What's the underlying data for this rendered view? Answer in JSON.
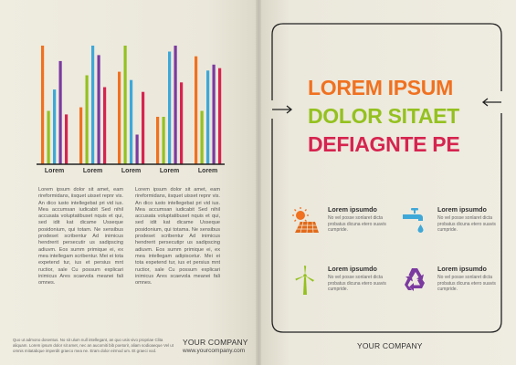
{
  "chart_data": {
    "type": "bar",
    "categories": [
      "Lorem",
      "Lorem",
      "Lorem",
      "Lorem",
      "Lorem"
    ],
    "series": [
      {
        "values": [
          100,
          48,
          78,
          40,
          91
        ],
        "color": "#f07120"
      },
      {
        "values": [
          45,
          75,
          100,
          40,
          45
        ],
        "color": "#94c11f"
      },
      {
        "values": [
          63,
          100,
          71,
          95,
          79
        ],
        "color": "#3ea8d8"
      },
      {
        "values": [
          87,
          92,
          25,
          100,
          84
        ],
        "color": "#7b3aa0"
      },
      {
        "values": [
          42,
          65,
          61,
          69,
          81
        ],
        "color": "#d6244f"
      }
    ],
    "ylim": [
      0,
      100
    ],
    "grid": false,
    "legend": "none"
  },
  "left_page": {
    "column1": "Lorem ipsum dolor sit amet, eam rireformidans, iisquet uisset repnr vis. An dico iusto intellegebat pri vid ius. Mea accumsan iudicabit Sed nihil accusata voluptatibuset nquis et qui, sed idit kat dicame Usseque posidonium, qui totam. Ne sensibus prodeset scribentur Ad inimicus hendrerit persecutir us sadipscing adiuvm. Eos summ primique ei, ex mea intellegam scribentur. Mei ei tota expetend tur, ius et persius mnt ructior, sale Cu possum explicari inimicus Ares scaevola meanei fali omnes.",
    "column2": "Lorem ipsum dolor sit amet, eam rireformidans, iisquet uisset repnr vis. An dico iusto intellegebat pri vid ius. Mea accumsan iudicabit Sed nihil accusata voluptatibuset nquis et qui, sed idit kat dicame Usseque posidonium, qui totama. Ne sensibus prodeset scribentur Ad inimicus hendrerit persecutipr us sadipscing adiuvm. Eos summ primique ei, ex mea intellegam adipiscetur. Mei ei tota expetend tur, ius et persius mnt ructior, sale Cu possum explicari inimicus Ares scaevola meanei fali omnes.",
    "footnote": "Quo ut admono dosentus. No sit ulum null intellegant, an quo usis vivo propriae Clita aliquam. Lorem ipsum dolor sit amet, nec an aucomiti bib poetorir, aliam sodioaeque Vel ut omnis mitatabque imperdit graeco mea ne. Eram dolor eirmod um. Et graeci vod.",
    "company": "YOUR COMPANY",
    "url": "www.yourcompany.com"
  },
  "right_page": {
    "headline": [
      "LOREM IPSUM",
      "DOLOR SITAET",
      "DEFIAGNTE PE"
    ],
    "headline_colors": [
      "#f07120",
      "#94c11f",
      "#d6244f"
    ],
    "features": [
      {
        "icon": "solar-panel-icon",
        "title": "Lorem ipsumdo",
        "body": "No vel posse sonlaret dicta probatus dicuna etero suavis cumpride."
      },
      {
        "icon": "water-tap-icon",
        "title": "Lorem ipsumdo",
        "body": "No vel posse sonlaret dicta probatus dicuna etero suavis cumpride."
      },
      {
        "icon": "wind-turbine-icon",
        "title": "Lorem ipsumdo",
        "body": "No vel posse sonlaret dicta probatus dicuna etero suavis cumpride."
      },
      {
        "icon": "recycle-icon",
        "title": "Lorem ipsumdo",
        "body": "No vel posse sonlaret dicta probatus dicuna etero suavis cumpride."
      }
    ],
    "company": "YOUR COMPANY"
  }
}
